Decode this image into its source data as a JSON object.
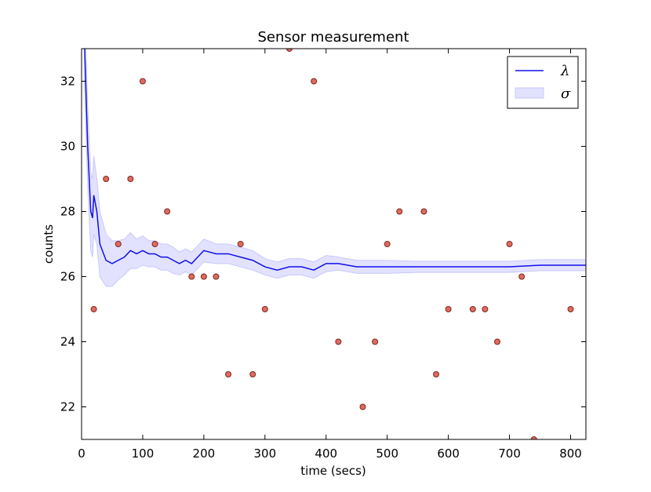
{
  "chart_data": {
    "type": "line",
    "title": "Sensor measurement",
    "x_label": "time (secs)",
    "y_label": "counts",
    "xlim": [
      0,
      825
    ],
    "ylim": [
      21,
      33
    ],
    "xticks": [
      0,
      100,
      200,
      300,
      400,
      500,
      600,
      700,
      800
    ],
    "yticks": [
      22,
      24,
      26,
      28,
      30,
      32
    ],
    "legend": "upper right",
    "x": [
      5,
      10,
      15,
      18,
      20,
      25,
      30,
      40,
      50,
      60,
      70,
      80,
      90,
      100,
      110,
      120,
      130,
      140,
      150,
      160,
      170,
      180,
      190,
      200,
      220,
      240,
      260,
      280,
      300,
      320,
      340,
      360,
      380,
      400,
      420,
      450,
      500,
      550,
      600,
      650,
      700,
      750,
      800,
      825
    ],
    "series": [
      {
        "name": "λ",
        "color": "#1010e8",
        "values": [
          33,
          30,
          28,
          27.8,
          28.5,
          28,
          27,
          26.5,
          26.4,
          26.5,
          26.6,
          26.8,
          26.7,
          26.8,
          26.7,
          26.7,
          26.6,
          26.6,
          26.5,
          26.4,
          26.5,
          26.4,
          26.6,
          26.8,
          26.7,
          26.7,
          26.6,
          26.5,
          26.3,
          26.2,
          26.3,
          26.3,
          26.2,
          26.4,
          26.4,
          26.3,
          26.3,
          26.3,
          26.3,
          26.3,
          26.3,
          26.35,
          26.35,
          26.35
        ]
      },
      {
        "name": "σ",
        "color": "#e2e2ff",
        "lower": [
          31.8,
          28.8,
          26.8,
          26.6,
          27.3,
          27,
          26,
          25.7,
          25.7,
          25.9,
          26.05,
          26.25,
          26.25,
          26.35,
          26.3,
          26.3,
          26.2,
          26.2,
          26.1,
          26.05,
          26.15,
          26.05,
          26.25,
          26.45,
          26.4,
          26.4,
          26.3,
          26.2,
          26.05,
          25.95,
          26.05,
          26.05,
          25.95,
          26.15,
          26.2,
          26.1,
          26.1,
          26.13,
          26.13,
          26.13,
          26.13,
          26.18,
          26.18,
          26.18
        ],
        "upper": [
          34.2,
          31.2,
          29.2,
          29.0,
          29.7,
          29,
          28,
          27.3,
          27.1,
          27.1,
          27.15,
          27.35,
          27.15,
          27.25,
          27.1,
          27.1,
          27.0,
          27.0,
          26.9,
          26.75,
          26.85,
          26.75,
          26.95,
          27.15,
          27.0,
          27.0,
          26.9,
          26.8,
          26.55,
          26.45,
          26.55,
          26.55,
          26.45,
          26.65,
          26.6,
          26.5,
          26.5,
          26.47,
          26.47,
          26.47,
          26.47,
          26.52,
          26.52,
          26.52
        ]
      }
    ],
    "points": {
      "color": "#e06a5e",
      "x": [
        20,
        40,
        60,
        80,
        100,
        120,
        140,
        180,
        200,
        220,
        240,
        260,
        280,
        300,
        340,
        380,
        420,
        460,
        480,
        500,
        520,
        560,
        580,
        600,
        640,
        660,
        680,
        700,
        720,
        740,
        800
      ],
      "values": [
        25,
        29,
        27,
        29,
        32,
        27,
        28,
        26,
        26,
        26,
        23,
        27,
        23,
        25,
        33,
        32,
        24,
        22,
        24,
        27,
        28,
        28,
        23,
        25,
        25,
        25,
        24,
        27,
        26,
        21,
        25
      ]
    }
  }
}
